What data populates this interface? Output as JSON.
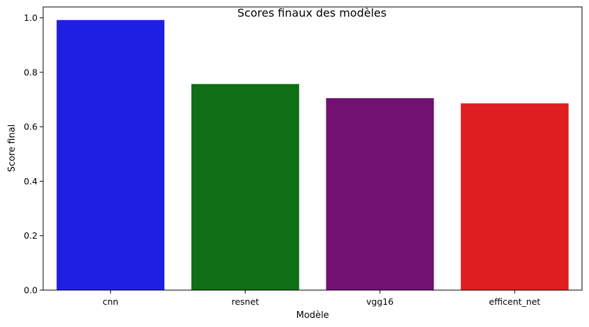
{
  "chart_data": {
    "type": "bar",
    "title": "Scores finaux des modèles",
    "xlabel": "Modèle",
    "ylabel": "Score final",
    "categories": [
      "cnn",
      "resnet",
      "vgg16",
      "efficent_net"
    ],
    "values": [
      0.992,
      0.757,
      0.705,
      0.686
    ],
    "colors": [
      "#1f1fe3",
      "#0f6f14",
      "#711171",
      "#df1f1f"
    ],
    "ylim": [
      0,
      1.04
    ],
    "yticks": [
      0.0,
      0.2,
      0.4,
      0.6,
      0.8,
      1.0
    ],
    "ytick_labels": [
      "0.0",
      "0.2",
      "0.4",
      "0.6",
      "0.8",
      "1.0"
    ],
    "grid": false,
    "legend": "none"
  }
}
